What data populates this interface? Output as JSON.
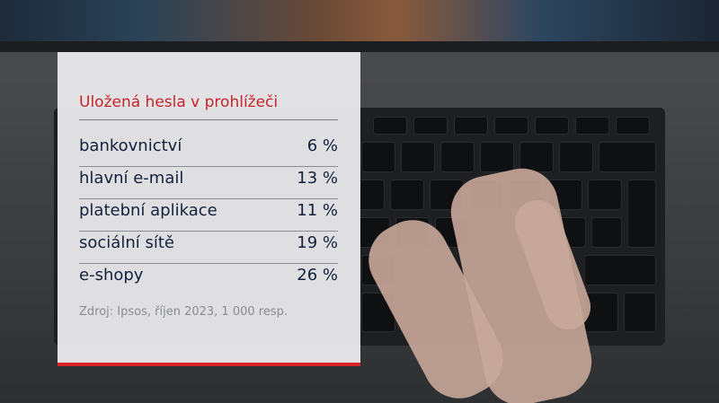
{
  "chart_data": {
    "type": "table",
    "title": "Uložená hesla v prohlížeči",
    "rows": [
      {
        "label": "bankovnictví",
        "value": 6,
        "display": "6 %"
      },
      {
        "label": "hlavní e-mail",
        "value": 13,
        "display": "13 %"
      },
      {
        "label": "platební aplikace",
        "value": 11,
        "display": "11 %"
      },
      {
        "label": "sociální sítě",
        "value": 19,
        "display": "19 %"
      },
      {
        "label": "e-shopy",
        "value": 26,
        "display": "26 %"
      }
    ],
    "unit": "%",
    "source": "Zdroj: Ipsos, říjen 2023, 1 000 resp."
  },
  "colors": {
    "title": "#c8232a",
    "text": "#14213d",
    "accent_bar": "#d8232a",
    "panel": "#ececee"
  }
}
